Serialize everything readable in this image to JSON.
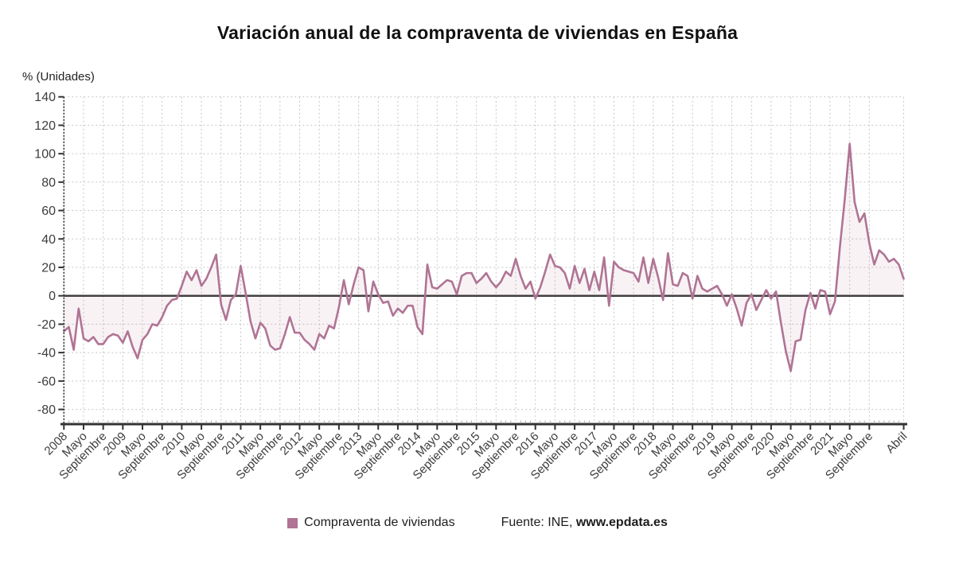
{
  "title": "Variación anual de la compraventa de viviendas en España",
  "y_axis_unit": "% (Unidades)",
  "legend": {
    "label": "Compraventa de viviendas"
  },
  "source": {
    "prefix": "Fuente: INE, ",
    "site": "www.epdata.es"
  },
  "colors": {
    "line": "#b07494",
    "area_fill": "rgba(176,116,148,0.09)",
    "zero_line": "#3d3d3d",
    "grid": "#c6c6c6",
    "axis": "#333333",
    "tick_label": "#3d3d3d",
    "minor_tick": "#aaaaaa"
  },
  "chart_data": {
    "type": "line",
    "title": "Variación anual de la compraventa de viviendas en España",
    "ylabel": "% (Unidades)",
    "xlabel": "",
    "x_start": "2008-01",
    "x_end": "2022-04",
    "frequency": "monthly",
    "ylim": [
      -80,
      140
    ],
    "y_ticks": [
      140,
      120,
      100,
      80,
      60,
      40,
      20,
      0,
      -20,
      -40,
      -60,
      -80
    ],
    "grid": true,
    "legend_position": "bottom",
    "x_tick_positions": [
      0,
      4,
      8,
      12,
      16,
      20,
      24,
      28,
      32,
      36,
      40,
      44,
      48,
      52,
      56,
      60,
      64,
      68,
      72,
      76,
      80,
      84,
      88,
      92,
      96,
      100,
      104,
      108,
      112,
      116,
      120,
      124,
      128,
      132,
      136,
      140,
      144,
      148,
      152,
      156,
      160,
      164,
      171
    ],
    "x_tick_labels": [
      "2008",
      "Mayo",
      "Septiembre",
      "2009",
      "Mayo",
      "Septiembre",
      "2010",
      "Mayo",
      "Septiembre",
      "2011",
      "Mayo",
      "Septiembre",
      "2012",
      "Mayo",
      "Septiembre",
      "2013",
      "Mayo",
      "Septiembre",
      "2014",
      "Mayo",
      "Septiembre",
      "2015",
      "Mayo",
      "Septiembre",
      "2016",
      "Mayo",
      "Septiembre",
      "2017",
      "Mayo",
      "Septiembre",
      "2018",
      "Mayo",
      "Septiembre",
      "2019",
      "Mayo",
      "Septiembre",
      "2020",
      "Mayo",
      "Septiembre",
      "2021",
      "Mayo",
      "Septiembre",
      "Abril"
    ],
    "series": [
      {
        "name": "Compraventa de viviendas",
        "color": "#b07494",
        "values": [
          -25,
          -22,
          -38,
          -9,
          -30,
          -32,
          -29,
          -34,
          -34,
          -29,
          -27,
          -28,
          -33,
          -25,
          -36,
          -44,
          -31,
          -27,
          -20,
          -21,
          -15,
          -7,
          -3,
          -2,
          7,
          17,
          11,
          18,
          7,
          12,
          20,
          29,
          -6,
          -17,
          -3,
          1,
          21,
          2,
          -18,
          -30,
          -19,
          -23,
          -35,
          -38,
          -37,
          -27,
          -15,
          -26,
          -26,
          -31,
          -34,
          -38,
          -27,
          -30,
          -21,
          -23,
          -8,
          11,
          -6,
          8,
          20,
          18,
          -11,
          10,
          1,
          -5,
          -4,
          -14,
          -9,
          -12,
          -7,
          -7,
          -22,
          -27,
          22,
          6,
          5,
          8,
          11,
          10,
          1,
          14,
          16,
          16,
          9,
          12,
          16,
          10,
          6,
          10,
          17,
          14,
          26,
          14,
          5,
          10,
          -2,
          6,
          17,
          29,
          21,
          20,
          16,
          5,
          21,
          9,
          19,
          4,
          17,
          4,
          27,
          -7,
          24,
          20,
          18,
          17,
          16,
          10,
          27,
          9,
          26,
          13,
          -3,
          30,
          8,
          7,
          16,
          14,
          -2,
          14,
          5,
          3,
          5,
          7,
          1,
          -7,
          1,
          -9,
          -21,
          -5,
          1,
          -10,
          -3,
          4,
          -2,
          3,
          -19,
          -39,
          -53,
          -32,
          -31,
          -10,
          2,
          -9,
          4,
          3,
          -13,
          -4,
          34,
          68,
          107,
          66,
          52,
          58,
          37,
          22,
          32,
          29,
          24,
          26,
          22,
          12
        ]
      }
    ]
  }
}
